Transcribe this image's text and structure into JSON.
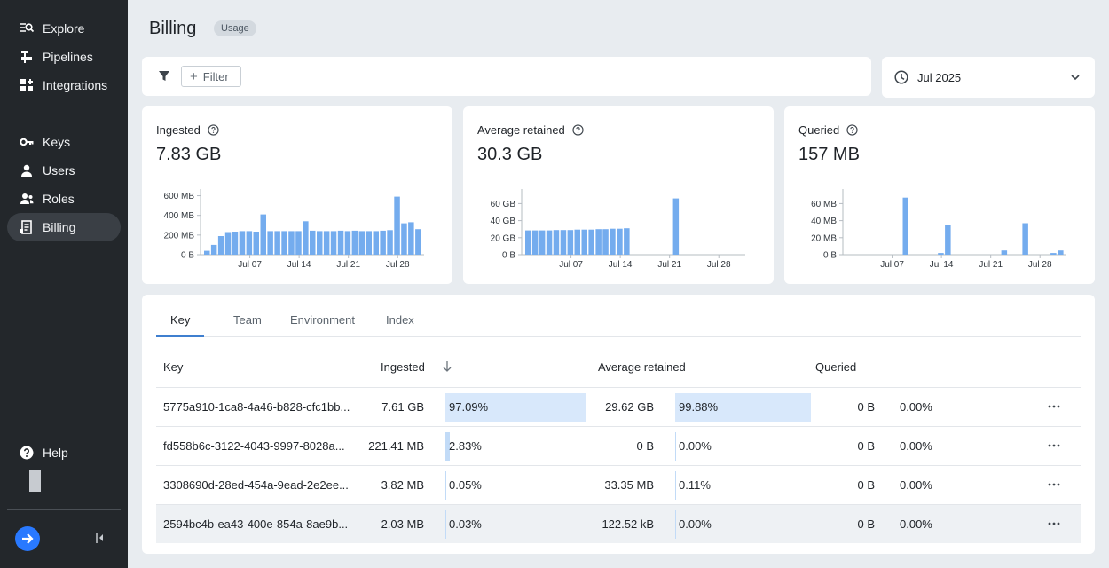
{
  "sidebar": {
    "nav_top": [
      {
        "label": "Explore",
        "icon": "explore-icon"
      },
      {
        "label": "Pipelines",
        "icon": "pipelines-icon"
      },
      {
        "label": "Integrations",
        "icon": "integrations-icon"
      }
    ],
    "nav_mid": [
      {
        "label": "Keys",
        "icon": "key-icon"
      },
      {
        "label": "Users",
        "icon": "user-icon"
      },
      {
        "label": "Roles",
        "icon": "roles-icon"
      },
      {
        "label": "Billing",
        "icon": "billing-icon",
        "active": true
      }
    ],
    "help_label": "Help"
  },
  "header": {
    "title": "Billing",
    "badge": "Usage"
  },
  "filter": {
    "button_label": "Filter"
  },
  "date_picker": {
    "value": "Jul 2025"
  },
  "metrics": [
    {
      "label": "Ingested",
      "value": "7.83 GB"
    },
    {
      "label": "Average retained",
      "value": "30.3 GB"
    },
    {
      "label": "Queried",
      "value": "157 MB"
    }
  ],
  "chart_data": [
    {
      "type": "bar",
      "title": "Ingested",
      "ylabel": "",
      "yticks": [
        "0 B",
        "200 MB",
        "400 MB",
        "600 MB"
      ],
      "ylim": [
        0,
        650
      ],
      "xticks": [
        "Jul 07",
        "Jul 14",
        "Jul 21",
        "Jul 28"
      ],
      "categories": [
        "Jul 01",
        "Jul 02",
        "Jul 03",
        "Jul 04",
        "Jul 05",
        "Jul 06",
        "Jul 07",
        "Jul 08",
        "Jul 09",
        "Jul 10",
        "Jul 11",
        "Jul 12",
        "Jul 13",
        "Jul 14",
        "Jul 15",
        "Jul 16",
        "Jul 17",
        "Jul 18",
        "Jul 19",
        "Jul 20",
        "Jul 21",
        "Jul 22",
        "Jul 23",
        "Jul 24",
        "Jul 25",
        "Jul 26",
        "Jul 27",
        "Jul 28",
        "Jul 29",
        "Jul 30",
        "Jul 31"
      ],
      "values": [
        40,
        100,
        190,
        230,
        235,
        240,
        240,
        235,
        410,
        240,
        240,
        240,
        240,
        240,
        340,
        245,
        240,
        240,
        240,
        245,
        240,
        245,
        240,
        240,
        240,
        245,
        250,
        590,
        320,
        330,
        260
      ]
    },
    {
      "type": "bar",
      "title": "Average retained",
      "ylabel": "",
      "yticks": [
        "0 B",
        "20 GB",
        "40 GB",
        "60 GB"
      ],
      "ylim": [
        0,
        75
      ],
      "xticks": [
        "Jul 07",
        "Jul 14",
        "Jul 21",
        "Jul 28"
      ],
      "categories": [
        "Jul 01",
        "Jul 02",
        "Jul 03",
        "Jul 04",
        "Jul 05",
        "Jul 06",
        "Jul 07",
        "Jul 08",
        "Jul 09",
        "Jul 10",
        "Jul 11",
        "Jul 12",
        "Jul 13",
        "Jul 14",
        "Jul 15",
        "Jul 16",
        "Jul 17",
        "Jul 18",
        "Jul 19",
        "Jul 20",
        "Jul 21",
        "Jul 22",
        "Jul 23",
        "Jul 24",
        "Jul 25",
        "Jul 26",
        "Jul 27",
        "Jul 28",
        "Jul 29",
        "Jul 30",
        "Jul 31"
      ],
      "values": [
        28.5,
        28.5,
        28.5,
        28.5,
        29,
        29,
        29,
        29.5,
        29.5,
        29.5,
        30,
        30,
        30.5,
        30.5,
        31,
        0,
        0,
        0,
        0,
        0,
        0,
        66,
        0,
        0,
        0,
        0,
        0,
        0,
        0,
        0,
        0
      ]
    },
    {
      "type": "bar",
      "title": "Queried",
      "ylabel": "",
      "yticks": [
        "0 B",
        "20 MB",
        "40 MB",
        "60 MB"
      ],
      "ylim": [
        0,
        75
      ],
      "xticks": [
        "Jul 07",
        "Jul 14",
        "Jul 21",
        "Jul 28"
      ],
      "categories": [
        "Jul 01",
        "Jul 02",
        "Jul 03",
        "Jul 04",
        "Jul 05",
        "Jul 06",
        "Jul 07",
        "Jul 08",
        "Jul 09",
        "Jul 10",
        "Jul 11",
        "Jul 12",
        "Jul 13",
        "Jul 14",
        "Jul 15",
        "Jul 16",
        "Jul 17",
        "Jul 18",
        "Jul 19",
        "Jul 20",
        "Jul 21",
        "Jul 22",
        "Jul 23",
        "Jul 24",
        "Jul 25",
        "Jul 26",
        "Jul 27",
        "Jul 28",
        "Jul 29",
        "Jul 30",
        "Jul 31"
      ],
      "values": [
        0,
        0,
        0,
        0,
        0,
        0,
        0,
        0,
        67,
        0,
        0,
        0,
        0,
        2,
        35,
        0,
        0,
        0,
        0,
        0,
        0,
        0,
        5,
        0,
        0,
        37,
        0,
        0,
        0,
        2,
        5
      ]
    }
  ],
  "table": {
    "tabs": [
      "Key",
      "Team",
      "Environment",
      "Index"
    ],
    "active_tab": "Key",
    "headers": {
      "key": "Key",
      "ingested": "Ingested",
      "retained": "Average retained",
      "queried": "Queried"
    },
    "rows": [
      {
        "key": "5775a910-1ca8-4a46-b828-cfc1bb...",
        "ingested": "7.61 GB",
        "ingested_pct": "97.09%",
        "ingested_frac": 0.9709,
        "retained": "29.62 GB",
        "retained_pct": "99.88%",
        "retained_frac": 0.9988,
        "queried": "0 B",
        "queried_pct": "0.00%",
        "highlight": false
      },
      {
        "key": "fd558b6c-3122-4043-9997-8028a...",
        "ingested": "221.41 MB",
        "ingested_pct": "2.83%",
        "ingested_frac": 0.0283,
        "retained": "0 B",
        "retained_pct": "0.00%",
        "retained_frac": 0,
        "queried": "0 B",
        "queried_pct": "0.00%",
        "highlight": false
      },
      {
        "key": "3308690d-28ed-454a-9ead-2e2ee...",
        "ingested": "3.82 MB",
        "ingested_pct": "0.05%",
        "ingested_frac": 0.0005,
        "retained": "33.35 MB",
        "retained_pct": "0.11%",
        "retained_frac": 0.0011,
        "queried": "0 B",
        "queried_pct": "0.00%",
        "highlight": false
      },
      {
        "key": "2594bc4b-ea43-400e-854a-8ae9b...",
        "ingested": "2.03 MB",
        "ingested_pct": "0.03%",
        "ingested_frac": 0.0003,
        "retained": "122.52 kB",
        "retained_pct": "0.00%",
        "retained_frac": 0,
        "queried": "0 B",
        "queried_pct": "0.00%",
        "highlight": true
      }
    ]
  },
  "colors": {
    "accent": "#2979ff",
    "bar": "#74acee",
    "sidebar": "#23272b",
    "bar_fill": "#d8e8fb"
  }
}
